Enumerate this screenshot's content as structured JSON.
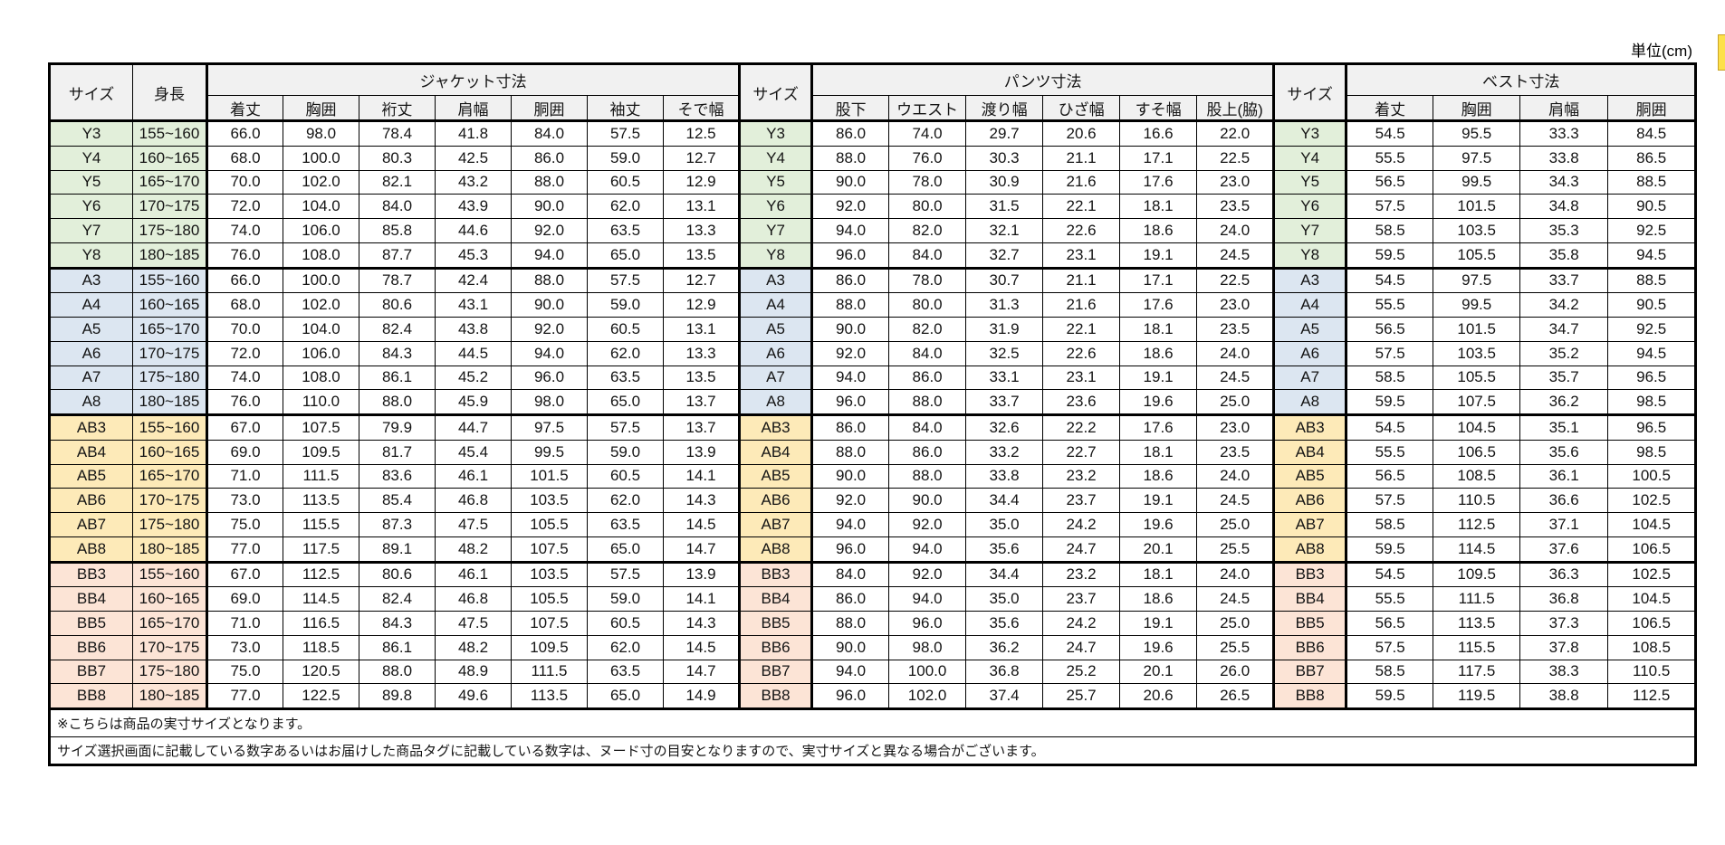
{
  "unit_label": "単位(cm)",
  "colors": {
    "group_Y": "#e2efda",
    "group_A": "#dce6f1",
    "group_AB": "#fdeab8",
    "group_BB": "#fce4d6",
    "header_bg": "#f1f1f1",
    "border": "#000000",
    "clipped_element_yellow": "#fde14a"
  },
  "table": {
    "size_header": "サイズ",
    "height_header": "身長",
    "sections": [
      {
        "title": "ジャケット寸法",
        "columns": [
          "着丈",
          "胸囲",
          "裄丈",
          "肩幅",
          "胴囲",
          "袖丈",
          "そで幅"
        ]
      },
      {
        "title": "パンツ寸法",
        "columns": [
          "股下",
          "ウエスト",
          "渡り幅",
          "ひざ幅",
          "すそ幅",
          "股上(脇)"
        ]
      },
      {
        "title": "ベスト寸法",
        "columns": [
          "着丈",
          "胸囲",
          "肩幅",
          "胴囲"
        ]
      }
    ],
    "rows": [
      {
        "size": "Y3",
        "group": "Y",
        "height": "155~160",
        "jacket": [
          "66.0",
          "98.0",
          "78.4",
          "41.8",
          "84.0",
          "57.5",
          "12.5"
        ],
        "pants": [
          "86.0",
          "74.0",
          "29.7",
          "20.6",
          "16.6",
          "22.0"
        ],
        "vest": [
          "54.5",
          "95.5",
          "33.3",
          "84.5"
        ]
      },
      {
        "size": "Y4",
        "group": "Y",
        "height": "160~165",
        "jacket": [
          "68.0",
          "100.0",
          "80.3",
          "42.5",
          "86.0",
          "59.0",
          "12.7"
        ],
        "pants": [
          "88.0",
          "76.0",
          "30.3",
          "21.1",
          "17.1",
          "22.5"
        ],
        "vest": [
          "55.5",
          "97.5",
          "33.8",
          "86.5"
        ]
      },
      {
        "size": "Y5",
        "group": "Y",
        "height": "165~170",
        "jacket": [
          "70.0",
          "102.0",
          "82.1",
          "43.2",
          "88.0",
          "60.5",
          "12.9"
        ],
        "pants": [
          "90.0",
          "78.0",
          "30.9",
          "21.6",
          "17.6",
          "23.0"
        ],
        "vest": [
          "56.5",
          "99.5",
          "34.3",
          "88.5"
        ]
      },
      {
        "size": "Y6",
        "group": "Y",
        "height": "170~175",
        "jacket": [
          "72.0",
          "104.0",
          "84.0",
          "43.9",
          "90.0",
          "62.0",
          "13.1"
        ],
        "pants": [
          "92.0",
          "80.0",
          "31.5",
          "22.1",
          "18.1",
          "23.5"
        ],
        "vest": [
          "57.5",
          "101.5",
          "34.8",
          "90.5"
        ]
      },
      {
        "size": "Y7",
        "group": "Y",
        "height": "175~180",
        "jacket": [
          "74.0",
          "106.0",
          "85.8",
          "44.6",
          "92.0",
          "63.5",
          "13.3"
        ],
        "pants": [
          "94.0",
          "82.0",
          "32.1",
          "22.6",
          "18.6",
          "24.0"
        ],
        "vest": [
          "58.5",
          "103.5",
          "35.3",
          "92.5"
        ]
      },
      {
        "size": "Y8",
        "group": "Y",
        "height": "180~185",
        "jacket": [
          "76.0",
          "108.0",
          "87.7",
          "45.3",
          "94.0",
          "65.0",
          "13.5"
        ],
        "pants": [
          "96.0",
          "84.0",
          "32.7",
          "23.1",
          "19.1",
          "24.5"
        ],
        "vest": [
          "59.5",
          "105.5",
          "35.8",
          "94.5"
        ]
      },
      {
        "size": "A3",
        "group": "A",
        "height": "155~160",
        "jacket": [
          "66.0",
          "100.0",
          "78.7",
          "42.4",
          "88.0",
          "57.5",
          "12.7"
        ],
        "pants": [
          "86.0",
          "78.0",
          "30.7",
          "21.1",
          "17.1",
          "22.5"
        ],
        "vest": [
          "54.5",
          "97.5",
          "33.7",
          "88.5"
        ]
      },
      {
        "size": "A4",
        "group": "A",
        "height": "160~165",
        "jacket": [
          "68.0",
          "102.0",
          "80.6",
          "43.1",
          "90.0",
          "59.0",
          "12.9"
        ],
        "pants": [
          "88.0",
          "80.0",
          "31.3",
          "21.6",
          "17.6",
          "23.0"
        ],
        "vest": [
          "55.5",
          "99.5",
          "34.2",
          "90.5"
        ]
      },
      {
        "size": "A5",
        "group": "A",
        "height": "165~170",
        "jacket": [
          "70.0",
          "104.0",
          "82.4",
          "43.8",
          "92.0",
          "60.5",
          "13.1"
        ],
        "pants": [
          "90.0",
          "82.0",
          "31.9",
          "22.1",
          "18.1",
          "23.5"
        ],
        "vest": [
          "56.5",
          "101.5",
          "34.7",
          "92.5"
        ]
      },
      {
        "size": "A6",
        "group": "A",
        "height": "170~175",
        "jacket": [
          "72.0",
          "106.0",
          "84.3",
          "44.5",
          "94.0",
          "62.0",
          "13.3"
        ],
        "pants": [
          "92.0",
          "84.0",
          "32.5",
          "22.6",
          "18.6",
          "24.0"
        ],
        "vest": [
          "57.5",
          "103.5",
          "35.2",
          "94.5"
        ]
      },
      {
        "size": "A7",
        "group": "A",
        "height": "175~180",
        "jacket": [
          "74.0",
          "108.0",
          "86.1",
          "45.2",
          "96.0",
          "63.5",
          "13.5"
        ],
        "pants": [
          "94.0",
          "86.0",
          "33.1",
          "23.1",
          "19.1",
          "24.5"
        ],
        "vest": [
          "58.5",
          "105.5",
          "35.7",
          "96.5"
        ]
      },
      {
        "size": "A8",
        "group": "A",
        "height": "180~185",
        "jacket": [
          "76.0",
          "110.0",
          "88.0",
          "45.9",
          "98.0",
          "65.0",
          "13.7"
        ],
        "pants": [
          "96.0",
          "88.0",
          "33.7",
          "23.6",
          "19.6",
          "25.0"
        ],
        "vest": [
          "59.5",
          "107.5",
          "36.2",
          "98.5"
        ]
      },
      {
        "size": "AB3",
        "group": "AB",
        "height": "155~160",
        "jacket": [
          "67.0",
          "107.5",
          "79.9",
          "44.7",
          "97.5",
          "57.5",
          "13.7"
        ],
        "pants": [
          "86.0",
          "84.0",
          "32.6",
          "22.2",
          "17.6",
          "23.0"
        ],
        "vest": [
          "54.5",
          "104.5",
          "35.1",
          "96.5"
        ]
      },
      {
        "size": "AB4",
        "group": "AB",
        "height": "160~165",
        "jacket": [
          "69.0",
          "109.5",
          "81.7",
          "45.4",
          "99.5",
          "59.0",
          "13.9"
        ],
        "pants": [
          "88.0",
          "86.0",
          "33.2",
          "22.7",
          "18.1",
          "23.5"
        ],
        "vest": [
          "55.5",
          "106.5",
          "35.6",
          "98.5"
        ]
      },
      {
        "size": "AB5",
        "group": "AB",
        "height": "165~170",
        "jacket": [
          "71.0",
          "111.5",
          "83.6",
          "46.1",
          "101.5",
          "60.5",
          "14.1"
        ],
        "pants": [
          "90.0",
          "88.0",
          "33.8",
          "23.2",
          "18.6",
          "24.0"
        ],
        "vest": [
          "56.5",
          "108.5",
          "36.1",
          "100.5"
        ]
      },
      {
        "size": "AB6",
        "group": "AB",
        "height": "170~175",
        "jacket": [
          "73.0",
          "113.5",
          "85.4",
          "46.8",
          "103.5",
          "62.0",
          "14.3"
        ],
        "pants": [
          "92.0",
          "90.0",
          "34.4",
          "23.7",
          "19.1",
          "24.5"
        ],
        "vest": [
          "57.5",
          "110.5",
          "36.6",
          "102.5"
        ]
      },
      {
        "size": "AB7",
        "group": "AB",
        "height": "175~180",
        "jacket": [
          "75.0",
          "115.5",
          "87.3",
          "47.5",
          "105.5",
          "63.5",
          "14.5"
        ],
        "pants": [
          "94.0",
          "92.0",
          "35.0",
          "24.2",
          "19.6",
          "25.0"
        ],
        "vest": [
          "58.5",
          "112.5",
          "37.1",
          "104.5"
        ]
      },
      {
        "size": "AB8",
        "group": "AB",
        "height": "180~185",
        "jacket": [
          "77.0",
          "117.5",
          "89.1",
          "48.2",
          "107.5",
          "65.0",
          "14.7"
        ],
        "pants": [
          "96.0",
          "94.0",
          "35.6",
          "24.7",
          "20.1",
          "25.5"
        ],
        "vest": [
          "59.5",
          "114.5",
          "37.6",
          "106.5"
        ]
      },
      {
        "size": "BB3",
        "group": "BB",
        "height": "155~160",
        "jacket": [
          "67.0",
          "112.5",
          "80.6",
          "46.1",
          "103.5",
          "57.5",
          "13.9"
        ],
        "pants": [
          "84.0",
          "92.0",
          "34.4",
          "23.2",
          "18.1",
          "24.0"
        ],
        "vest": [
          "54.5",
          "109.5",
          "36.3",
          "102.5"
        ]
      },
      {
        "size": "BB4",
        "group": "BB",
        "height": "160~165",
        "jacket": [
          "69.0",
          "114.5",
          "82.4",
          "46.8",
          "105.5",
          "59.0",
          "14.1"
        ],
        "pants": [
          "86.0",
          "94.0",
          "35.0",
          "23.7",
          "18.6",
          "24.5"
        ],
        "vest": [
          "55.5",
          "111.5",
          "36.8",
          "104.5"
        ]
      },
      {
        "size": "BB5",
        "group": "BB",
        "height": "165~170",
        "jacket": [
          "71.0",
          "116.5",
          "84.3",
          "47.5",
          "107.5",
          "60.5",
          "14.3"
        ],
        "pants": [
          "88.0",
          "96.0",
          "35.6",
          "24.2",
          "19.1",
          "25.0"
        ],
        "vest": [
          "56.5",
          "113.5",
          "37.3",
          "106.5"
        ]
      },
      {
        "size": "BB6",
        "group": "BB",
        "height": "170~175",
        "jacket": [
          "73.0",
          "118.5",
          "86.1",
          "48.2",
          "109.5",
          "62.0",
          "14.5"
        ],
        "pants": [
          "90.0",
          "98.0",
          "36.2",
          "24.7",
          "19.6",
          "25.5"
        ],
        "vest": [
          "57.5",
          "115.5",
          "37.8",
          "108.5"
        ]
      },
      {
        "size": "BB7",
        "group": "BB",
        "height": "175~180",
        "jacket": [
          "75.0",
          "120.5",
          "88.0",
          "48.9",
          "111.5",
          "63.5",
          "14.7"
        ],
        "pants": [
          "94.0",
          "100.0",
          "36.8",
          "25.2",
          "20.1",
          "26.0"
        ],
        "vest": [
          "58.5",
          "117.5",
          "38.3",
          "110.5"
        ]
      },
      {
        "size": "BB8",
        "group": "BB",
        "height": "180~185",
        "jacket": [
          "77.0",
          "122.5",
          "89.8",
          "49.6",
          "113.5",
          "65.0",
          "14.9"
        ],
        "pants": [
          "96.0",
          "102.0",
          "37.4",
          "25.7",
          "20.6",
          "26.5"
        ],
        "vest": [
          "59.5",
          "119.5",
          "38.8",
          "112.5"
        ]
      }
    ]
  },
  "notes": [
    "※こちらは商品の実寸サイズとなります。",
    "サイズ選択画面に記載している数字あるいはお届けした商品タグに記載している数字は、ヌード寸の目安となりますので、実寸サイズと異なる場合がございます。"
  ]
}
